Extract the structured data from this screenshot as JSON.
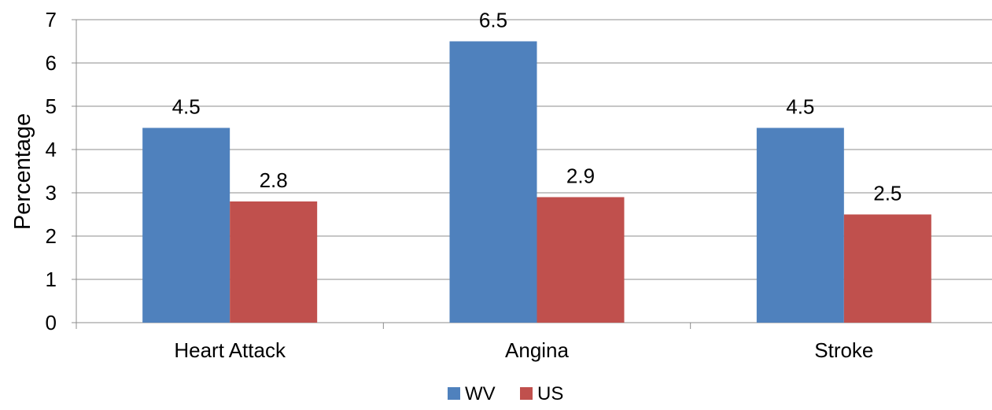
{
  "chart_data": {
    "type": "bar",
    "title": "",
    "xlabel": "",
    "ylabel": "Percentage",
    "ylim": [
      0,
      7
    ],
    "yticks": [
      0,
      1,
      2,
      3,
      4,
      5,
      6,
      7
    ],
    "grid": true,
    "legend_position": "bottom",
    "categories": [
      "Heart Attack",
      "Angina",
      "Stroke"
    ],
    "series": [
      {
        "name": "WV",
        "color": "#4F81BD",
        "values": [
          4.5,
          6.5,
          4.5
        ]
      },
      {
        "name": "US",
        "color": "#C0504D",
        "values": [
          2.8,
          2.9,
          2.5
        ]
      }
    ]
  }
}
